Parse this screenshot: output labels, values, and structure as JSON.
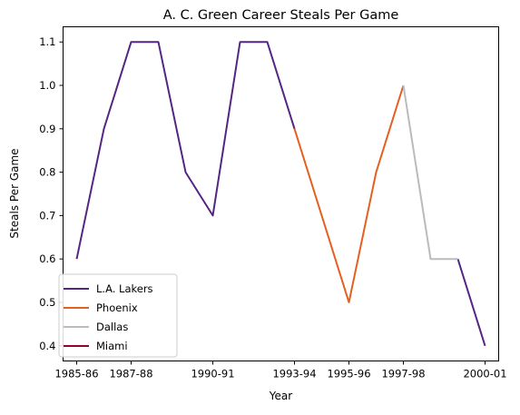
{
  "chart_data": {
    "type": "line",
    "title": "A. C. Green Career Steals Per Game",
    "xlabel": "Year",
    "ylabel": "Steals Per Game",
    "x_tick_labels": [
      "1985-86",
      "1987-88",
      "1990-91",
      "1993-94",
      "1995-96",
      "1997-98",
      "2000-01"
    ],
    "x_tick_positions": [
      0,
      2,
      5,
      8,
      10,
      12,
      15
    ],
    "y_ticks": [
      0.4,
      0.5,
      0.6,
      0.7,
      0.8,
      0.9,
      1.0,
      1.1
    ],
    "y_tick_labels": [
      "0.4",
      "0.5",
      "0.6",
      "0.7",
      "0.8",
      "0.9",
      "1.0",
      "1.1"
    ],
    "xlim": [
      -0.5,
      15.5
    ],
    "ylim": [
      0.365,
      1.135
    ],
    "legend_position": "lower-left",
    "series": [
      {
        "name": "L.A. Lakers",
        "color": "#552583",
        "segments": [
          [
            [
              0,
              0.6
            ],
            [
              1,
              0.9
            ],
            [
              2,
              1.1
            ],
            [
              3,
              1.1
            ],
            [
              4,
              0.8
            ],
            [
              5,
              0.7
            ],
            [
              6,
              1.1
            ],
            [
              7,
              1.1
            ],
            [
              8,
              0.9
            ]
          ],
          [
            [
              14,
              0.6
            ],
            [
              15,
              0.4
            ]
          ]
        ]
      },
      {
        "name": "Phoenix",
        "color": "#E56020",
        "segments": [
          [
            [
              8,
              0.9
            ],
            [
              10,
              0.5
            ],
            [
              11,
              0.8
            ],
            [
              12,
              1.0
            ]
          ]
        ]
      },
      {
        "name": "Dallas",
        "color": "#BBBBBB",
        "segments": [
          [
            [
              12,
              1.0
            ],
            [
              13,
              0.6
            ],
            [
              14,
              0.6
            ]
          ]
        ]
      },
      {
        "name": "Miami",
        "color": "#98002E",
        "segments": []
      }
    ]
  }
}
